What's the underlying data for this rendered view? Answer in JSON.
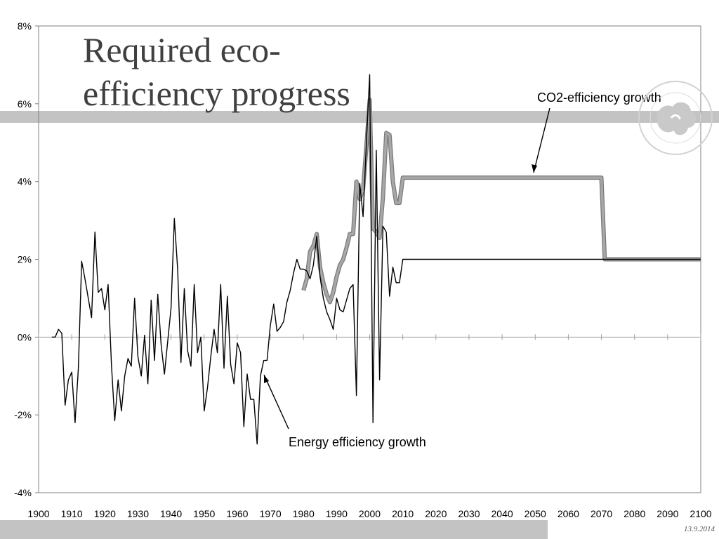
{
  "slide": {
    "title_line1": "Required eco-",
    "title_line2": "efficiency progress",
    "date": "13.9.2014",
    "logo_icon": "university-seal-icon",
    "colors": {
      "band": "#c3c3c3",
      "title": "#404040",
      "co2_series": "#a8a8a8"
    }
  },
  "chart_data": {
    "type": "line",
    "xlim": [
      1900,
      2100
    ],
    "ylim": [
      -4,
      8
    ],
    "x_ticks": [
      1900,
      1910,
      1920,
      1930,
      1940,
      1950,
      1960,
      1970,
      1980,
      1990,
      2000,
      2010,
      2020,
      2030,
      2040,
      2050,
      2060,
      2070,
      2080,
      2090,
      2100
    ],
    "y_ticks": [
      -4,
      -2,
      0,
      2,
      4,
      6,
      8
    ],
    "y_tick_labels": [
      "-4%",
      "-2%",
      "0%",
      "2%",
      "4%",
      "6%",
      "8%"
    ],
    "grid": false,
    "annotations": [
      {
        "text": "CO2-efficiency growth",
        "series": "co2"
      },
      {
        "text": "Energy efficiency growth",
        "series": "energy"
      }
    ],
    "series": [
      {
        "id": "energy",
        "x": [
          1904,
          1905,
          1906,
          1907,
          1908,
          1909,
          1910,
          1911,
          1912,
          1913,
          1914,
          1915,
          1916,
          1917,
          1918,
          1919,
          1920,
          1921,
          1922,
          1923,
          1924,
          1925,
          1926,
          1927,
          1928,
          1929,
          1930,
          1931,
          1932,
          1933,
          1934,
          1935,
          1936,
          1937,
          1938,
          1939,
          1940,
          1941,
          1942,
          1943,
          1944,
          1945,
          1946,
          1947,
          1948,
          1949,
          1950,
          1951,
          1952,
          1953,
          1954,
          1955,
          1956,
          1957,
          1958,
          1959,
          1960,
          1961,
          1962,
          1963,
          1964,
          1965,
          1966,
          1967,
          1968,
          1969,
          1970,
          1971,
          1972,
          1973,
          1974,
          1975,
          1976,
          1977,
          1978,
          1979,
          1980,
          1981,
          1982,
          1983,
          1984,
          1985,
          1986,
          1987,
          1988,
          1989,
          1990,
          1991,
          1992,
          1993,
          1994,
          1995,
          1996,
          1997,
          1998,
          1999,
          2000,
          2001,
          2002,
          2003,
          2004,
          2005,
          2006,
          2007,
          2008,
          2009,
          2010,
          2100
        ],
        "y": [
          0,
          0,
          0.2,
          0.1,
          -1.75,
          -1.1,
          -0.9,
          -2.2,
          -0.8,
          1.95,
          1.5,
          1.0,
          0.5,
          2.7,
          1.15,
          1.25,
          0.7,
          1.35,
          -0.7,
          -2.15,
          -1.1,
          -1.9,
          -1.0,
          -0.55,
          -0.75,
          1.0,
          -0.5,
          -1.0,
          0.05,
          -1.2,
          0.95,
          -0.6,
          1.1,
          -0.2,
          -0.95,
          -0.1,
          0.75,
          3.05,
          1.75,
          -0.65,
          1.25,
          -0.35,
          -0.75,
          1.35,
          -0.4,
          0.0,
          -1.9,
          -1.3,
          -0.5,
          0.2,
          -0.4,
          1.35,
          -0.8,
          1.05,
          -0.7,
          -1.2,
          -0.15,
          -0.4,
          -2.3,
          -0.95,
          -1.6,
          -1.6,
          -2.75,
          -1.0,
          -0.6,
          -0.6,
          0.3,
          0.85,
          0.15,
          0.25,
          0.4,
          0.9,
          1.2,
          1.65,
          2.0,
          1.75,
          1.75,
          1.7,
          1.5,
          1.85,
          2.6,
          1.55,
          1.0,
          0.65,
          0.45,
          0.2,
          1.0,
          0.7,
          0.65,
          0.95,
          1.25,
          1.35,
          -1.5,
          3.95,
          3.1,
          5.0,
          6.75,
          -2.2,
          4.8,
          -1.1,
          2.85,
          2.7,
          1.05,
          1.8,
          1.4,
          1.4,
          2.0,
          2.0
        ]
      },
      {
        "id": "co2",
        "x": [
          1980,
          1981,
          1982,
          1983,
          1984,
          1985,
          1986,
          1987,
          1988,
          1989,
          1990,
          1991,
          1992,
          1993,
          1994,
          1995,
          1996,
          1997,
          1998,
          1999,
          2000,
          2001,
          2002,
          2003,
          2004,
          2005,
          2006,
          2007,
          2008,
          2009,
          2010,
          2070,
          2071,
          2100
        ],
        "y": [
          1.2,
          1.5,
          2.2,
          2.35,
          2.65,
          1.8,
          1.4,
          1.1,
          0.9,
          1.15,
          1.55,
          1.85,
          2.0,
          2.3,
          2.65,
          2.65,
          4.0,
          3.55,
          3.8,
          4.9,
          6.1,
          2.8,
          2.7,
          2.55,
          3.6,
          5.25,
          5.2,
          4.0,
          3.45,
          3.45,
          4.1,
          4.1,
          2.0,
          2.0
        ]
      }
    ]
  }
}
